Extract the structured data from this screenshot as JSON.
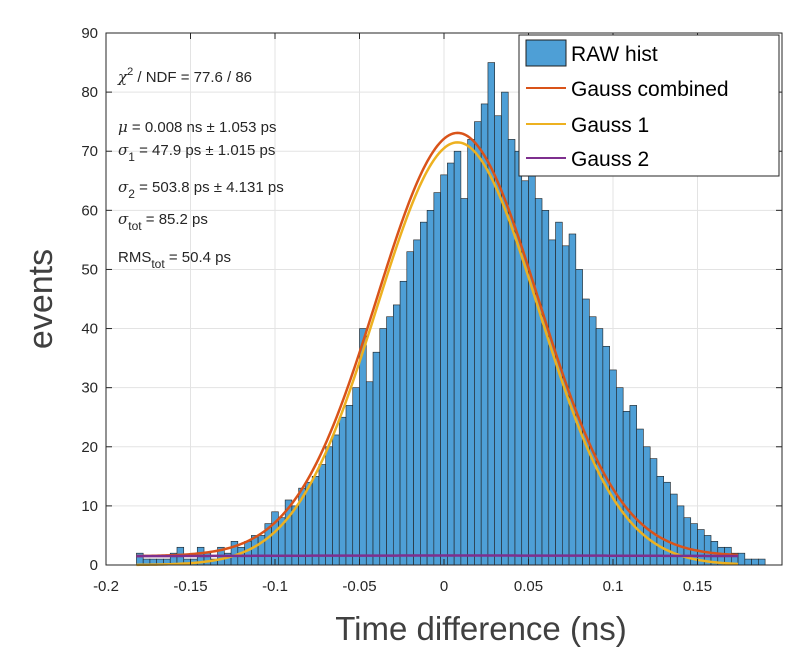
{
  "chart_data": {
    "type": "histogram",
    "title": "",
    "xlabel": "Time difference (ns)",
    "ylabel": "events",
    "xlim": [
      -0.2,
      0.2
    ],
    "ylim": [
      0,
      90
    ],
    "xticks": [
      -0.2,
      -0.15,
      -0.1,
      -0.05,
      0,
      0.05,
      0.1,
      0.15
    ],
    "xtick_labels": [
      "-0.2",
      "-0.15",
      "-0.1",
      "-0.05",
      "0",
      "0.05",
      "0.1",
      "0.15"
    ],
    "yticks": [
      0,
      10,
      20,
      30,
      40,
      50,
      60,
      70,
      80,
      90
    ],
    "ytick_labels": [
      "0",
      "10",
      "20",
      "30",
      "40",
      "50",
      "60",
      "70",
      "80",
      "90"
    ],
    "grid": true,
    "legend_position": "top-right",
    "bin_start": -0.182,
    "bin_width": 0.004,
    "hist_counts": [
      2,
      1,
      1,
      1,
      1,
      2,
      3,
      1,
      1,
      3,
      2,
      1,
      3,
      2,
      4,
      3,
      4,
      5,
      5,
      7,
      9,
      8,
      11,
      10,
      13,
      14,
      15,
      17,
      20,
      22,
      25,
      27,
      30,
      40,
      31,
      36,
      40,
      42,
      44,
      48,
      53,
      55,
      58,
      60,
      63,
      66,
      68,
      70,
      62,
      72,
      75,
      78,
      85,
      76,
      80,
      72,
      70,
      65,
      67,
      62,
      60,
      55,
      58,
      54,
      56,
      50,
      45,
      42,
      40,
      37,
      33,
      30,
      26,
      27,
      23,
      20,
      18,
      15,
      14,
      12,
      10,
      8,
      7,
      6,
      5,
      4,
      3,
      3,
      2,
      2,
      1,
      1,
      1
    ],
    "series": [
      {
        "name": "RAW hist",
        "kind": "bar",
        "color": "#4e9fd6"
      },
      {
        "name": "Gauss combined",
        "kind": "line",
        "color": "#d95319",
        "mu": 0.008,
        "sigma1": 0.0479,
        "amp1": 71.5,
        "sigma2": 0.5038,
        "amp2": 1.6
      },
      {
        "name": "Gauss 1",
        "kind": "line",
        "color": "#edb120",
        "mu": 0.008,
        "sigma": 0.0479,
        "amp": 71.5
      },
      {
        "name": "Gauss 2",
        "kind": "line",
        "color": "#7e2f8e",
        "mu": 0.008,
        "sigma": 0.5038,
        "amp": 1.6
      }
    ],
    "fit_range": [
      -0.182,
      0.174
    ]
  },
  "annotations": {
    "chi_symbol": "χ",
    "chi_sup": "2",
    "chi_rest": " / NDF = 77.6 / 86",
    "mu_symbol": "μ",
    "mu_rest": " = 0.008 ns ± 1.053 ps",
    "sigma1_symbol": "σ",
    "sigma1_sub": "1",
    "sigma1_rest": " = 47.9 ps ± 1.015 ps",
    "sigma2_symbol": "σ",
    "sigma2_sub": "2",
    "sigma2_rest": " = 503.8 ps ± 4.131 ps",
    "sigmatot_symbol": "σ",
    "sigmatot_sub": "tot",
    "sigmatot_rest": " = 85.2 ps",
    "rms_base": "RMS",
    "rms_sub": "tot",
    "rms_rest": " = 50.4 ps"
  },
  "colors": {
    "bar_fill": "#4e9fd6",
    "bar_edge": "#1f1f1f",
    "grid": "#e3e3e3",
    "axis": "#262626"
  }
}
